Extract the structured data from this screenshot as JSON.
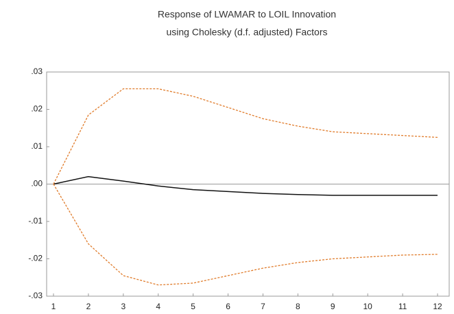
{
  "chart_data": {
    "type": "line",
    "title": "Response of LWAMAR to LOIL Innovation",
    "subtitle": "using Cholesky (d.f. adjusted) Factors",
    "categories": [
      "1",
      "2",
      "3",
      "4",
      "5",
      "6",
      "7",
      "8",
      "9",
      "10",
      "11",
      "12"
    ],
    "series": [
      {
        "color": "#111111",
        "style": "solid",
        "values": [
          0,
          0.002,
          0.0008,
          -0.0005,
          -0.0015,
          -0.002,
          -0.0025,
          -0.0028,
          -0.003,
          -0.003,
          -0.003,
          -0.003
        ]
      },
      {
        "color": "#e07b2a",
        "style": "dashed",
        "values": [
          0,
          0.0185,
          0.0255,
          0.0255,
          0.0235,
          0.0205,
          0.0175,
          0.0155,
          0.014,
          0.0135,
          0.013,
          0.0125
        ]
      },
      {
        "color": "#e07b2a",
        "style": "dashed",
        "values": [
          0,
          -0.016,
          -0.0245,
          -0.027,
          -0.0265,
          -0.0245,
          -0.0225,
          -0.021,
          -0.02,
          -0.0195,
          -0.019,
          -0.0188
        ]
      }
    ],
    "ylim": [
      -0.03,
      0.03
    ],
    "yticks": [
      {
        "value": 0.03,
        "label": ".03"
      },
      {
        "value": 0.02,
        "label": ".02"
      },
      {
        "value": 0.01,
        "label": ".01"
      },
      {
        "value": 0,
        "label": ".00"
      },
      {
        "value": -0.01,
        "label": "-.01"
      },
      {
        "value": -0.02,
        "label": "-.02"
      },
      {
        "value": -0.03,
        "label": "-.03"
      }
    ],
    "grid": false
  }
}
